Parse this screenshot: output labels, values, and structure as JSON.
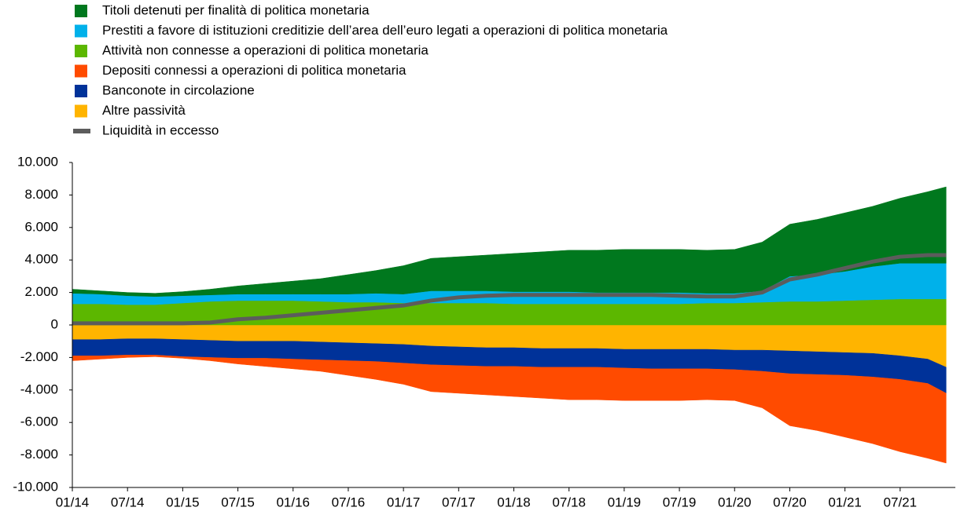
{
  "chart_data": {
    "type": "area",
    "x": [
      "01/14",
      "04/14",
      "07/14",
      "10/14",
      "01/15",
      "04/15",
      "07/15",
      "10/15",
      "01/16",
      "04/16",
      "07/16",
      "10/16",
      "01/17",
      "04/17",
      "07/17",
      "10/17",
      "01/18",
      "04/18",
      "07/18",
      "10/18",
      "01/19",
      "04/19",
      "07/19",
      "10/19",
      "01/20",
      "04/20",
      "07/20",
      "10/20",
      "01/21",
      "04/21",
      "07/21",
      "10/21",
      "12/21"
    ],
    "xlim": [
      "01/14",
      "01/22"
    ],
    "xticks": [
      "01/14",
      "07/14",
      "01/15",
      "07/15",
      "01/16",
      "07/16",
      "01/17",
      "07/17",
      "01/18",
      "07/18",
      "01/19",
      "07/19",
      "01/20",
      "07/20",
      "01/21",
      "07/21"
    ],
    "ylim": [
      -10000,
      10000
    ],
    "yticks": [
      {
        "value": -10000,
        "label": "-10.000"
      },
      {
        "value": -8000,
        "label": "-8.000"
      },
      {
        "value": -6000,
        "label": "-6.000"
      },
      {
        "value": -4000,
        "label": "-4.000"
      },
      {
        "value": -2000,
        "label": "-2.000"
      },
      0,
      {
        "value": 2000,
        "label": "2.000"
      },
      {
        "value": 4000,
        "label": "4.000"
      },
      {
        "value": 6000,
        "label": "6.000"
      },
      {
        "value": 8000,
        "label": "8.000"
      },
      {
        "value": 10000,
        "label": "10.000"
      }
    ],
    "series": [
      {
        "name": "Titoli detenuti per finalità di politica monetaria",
        "type": "area",
        "color": "#00781e",
        "values": [
          250,
          200,
          200,
          200,
          250,
          350,
          500,
          650,
          800,
          950,
          1200,
          1400,
          1750,
          2000,
          2100,
          2200,
          2350,
          2450,
          2550,
          2600,
          2650,
          2650,
          2650,
          2650,
          2700,
          3000,
          3200,
          3400,
          3600,
          3700,
          4000,
          4400,
          4700
        ]
      },
      {
        "name": "Prestiti a favore di istituzioni creditizie dell’area dell’euro legati a operazioni di politica monetaria",
        "type": "area",
        "color": "#00b1ea",
        "values": [
          650,
          600,
          550,
          500,
          450,
          400,
          400,
          400,
          400,
          450,
          500,
          550,
          550,
          750,
          750,
          750,
          750,
          750,
          750,
          700,
          700,
          700,
          700,
          600,
          600,
          700,
          1550,
          1650,
          1800,
          2050,
          2200,
          2200,
          2200
        ]
      },
      {
        "name": "Attività non connesse a operazioni di politica monetaria",
        "type": "area",
        "color": "#5cb700",
        "values": [
          1300,
          1300,
          1250,
          1250,
          1350,
          1450,
          1500,
          1500,
          1500,
          1450,
          1400,
          1400,
          1350,
          1350,
          1350,
          1350,
          1300,
          1300,
          1300,
          1300,
          1300,
          1300,
          1300,
          1350,
          1350,
          1400,
          1450,
          1450,
          1500,
          1550,
          1600,
          1600,
          1600
        ]
      },
      {
        "name": "Depositi connessi a operazioni di politica monetaria",
        "type": "area",
        "color": "#ff4b00",
        "values": [
          -300,
          -200,
          -150,
          -100,
          -100,
          -200,
          -350,
          -500,
          -600,
          -700,
          -900,
          -1100,
          -1300,
          -1650,
          -1700,
          -1750,
          -1850,
          -1900,
          -2000,
          -2000,
          -2000,
          -1950,
          -1950,
          -1900,
          -1900,
          -2250,
          -3200,
          -3450,
          -3800,
          -4100,
          -4450,
          -4600,
          -4300
        ]
      },
      {
        "name": "Banconote in circolazione",
        "type": "area",
        "color": "#003299",
        "values": [
          -1000,
          -1000,
          -1000,
          -1000,
          -1050,
          -1050,
          -1050,
          -1050,
          -1100,
          -1100,
          -1100,
          -1100,
          -1150,
          -1150,
          -1150,
          -1150,
          -1150,
          -1150,
          -1150,
          -1150,
          -1150,
          -1200,
          -1200,
          -1200,
          -1200,
          -1300,
          -1400,
          -1400,
          -1400,
          -1450,
          -1450,
          -1500,
          -1600
        ]
      },
      {
        "name": "Altre passività",
        "type": "area",
        "color": "#ffb400",
        "values": [
          -900,
          -900,
          -850,
          -850,
          -900,
          -950,
          -1000,
          -1000,
          -1000,
          -1050,
          -1100,
          -1150,
          -1200,
          -1300,
          -1350,
          -1400,
          -1400,
          -1450,
          -1450,
          -1450,
          -1500,
          -1500,
          -1500,
          -1500,
          -1550,
          -1550,
          -1600,
          -1650,
          -1700,
          -1750,
          -1900,
          -2100,
          -2600
        ]
      },
      {
        "name": "Liquidità in eccesso",
        "type": "line",
        "color": "#5c5c5c",
        "values": [
          100,
          100,
          100,
          100,
          100,
          150,
          350,
          450,
          600,
          750,
          900,
          1050,
          1200,
          1500,
          1700,
          1800,
          1850,
          1850,
          1850,
          1850,
          1850,
          1850,
          1800,
          1750,
          1750,
          2000,
          2800,
          3100,
          3500,
          3900,
          4200,
          4300,
          4300
        ]
      }
    ]
  }
}
